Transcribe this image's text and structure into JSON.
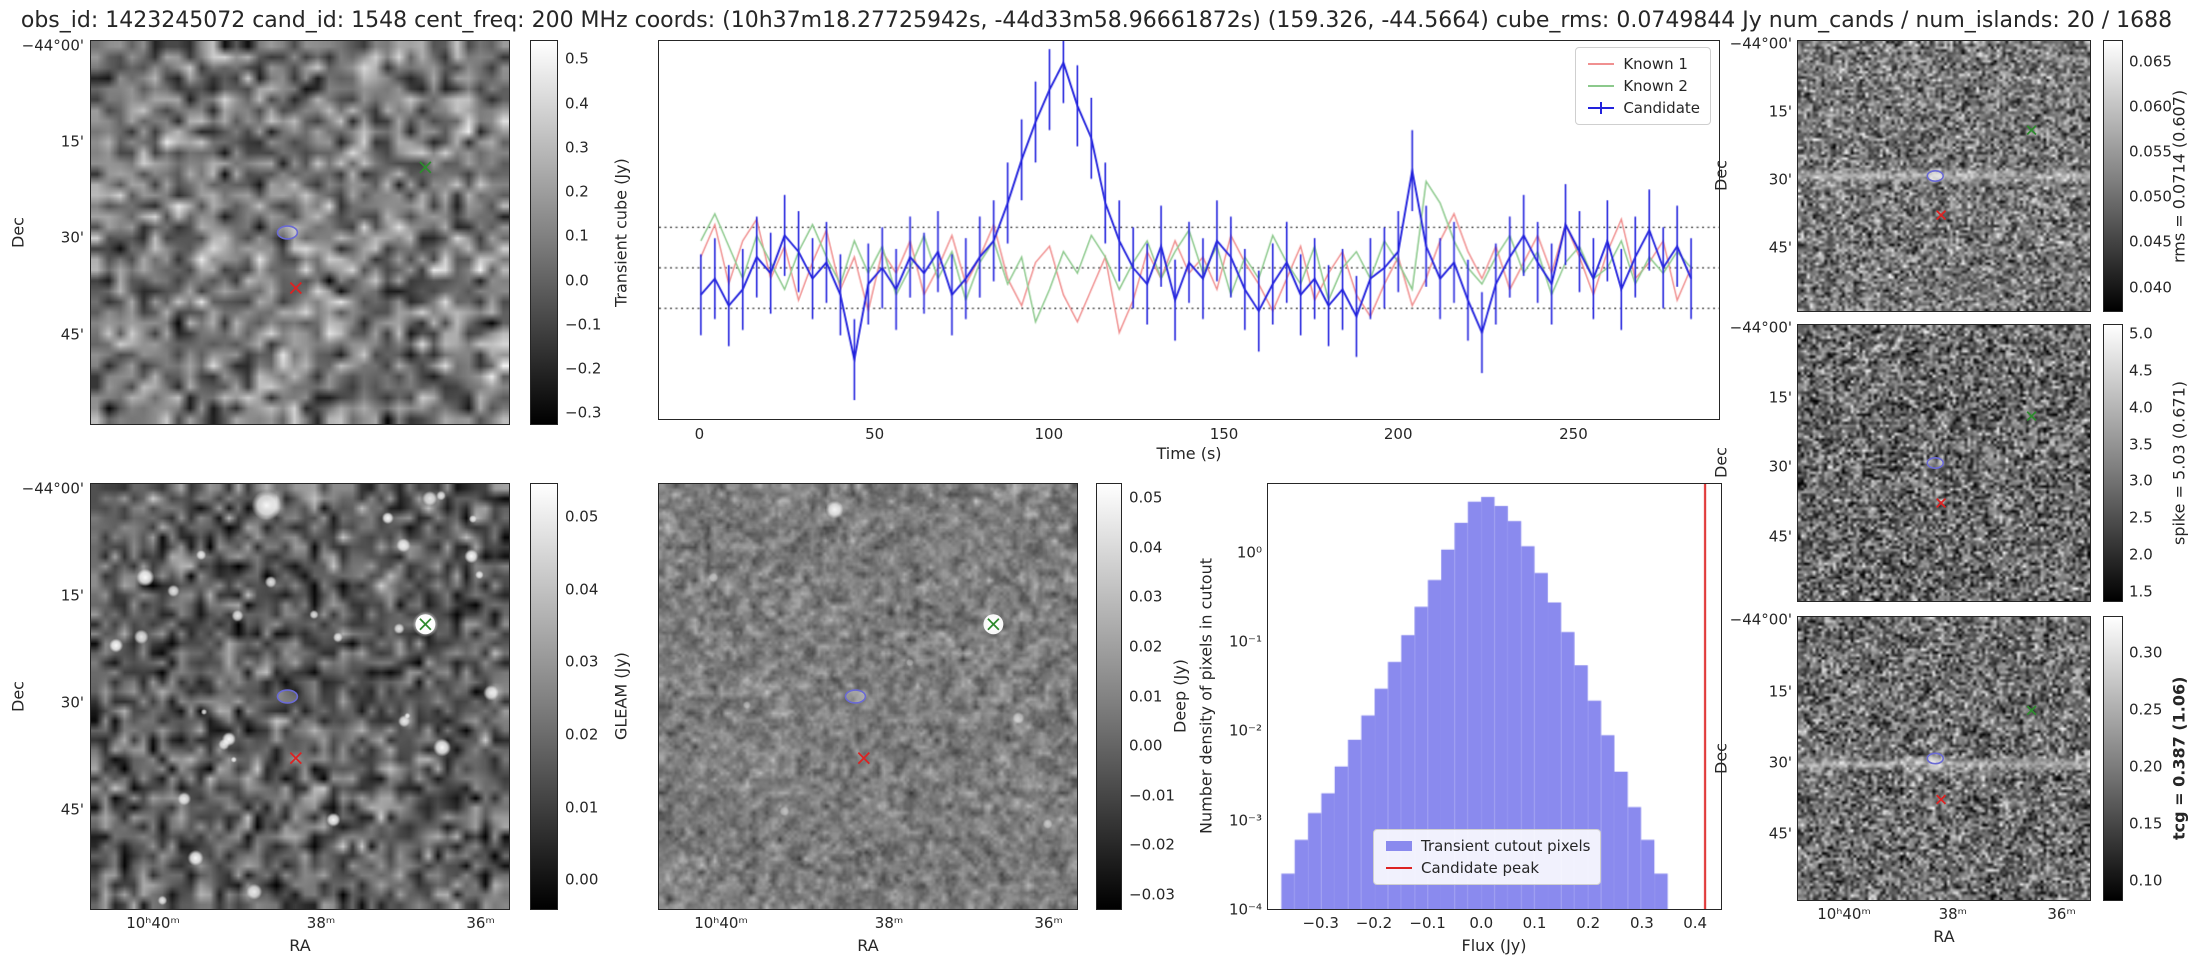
{
  "title": "obs_id: 1423245072 cand_id: 1548 cent_freq: 200 MHz coords: (10h37m18.27725942s, -44d33m58.96661872s) (159.326, -44.5664) cube_rms: 0.0749844 Jy num_cands / num_islands: 20 / 1688",
  "axes": {
    "dec_label": "Dec",
    "ra_label": "RA",
    "dec_ticks": [
      "−44°00'",
      "15'",
      "30'",
      "45'"
    ],
    "ra_ticks": [
      "10ʰ40ᵐ",
      "38ᵐ",
      "36ᵐ"
    ]
  },
  "colorbars": {
    "transient_cube": {
      "label": "Transient cube (Jy)",
      "ticks": [
        "0.5",
        "0.4",
        "0.3",
        "0.2",
        "0.1",
        "0.0",
        "−0.1",
        "−0.2",
        "−0.3"
      ]
    },
    "gleam": {
      "label": "GLEAM (Jy)",
      "ticks": [
        "0.05",
        "0.04",
        "0.03",
        "0.02",
        "0.01",
        "0.00"
      ]
    },
    "deep": {
      "label": "Deep (Jy)",
      "ticks": [
        "0.05",
        "0.04",
        "0.03",
        "0.02",
        "0.01",
        "0.00",
        "−0.01",
        "−0.02",
        "−0.03"
      ]
    },
    "rms": {
      "label": "rms = 0.0714 (0.607)",
      "ticks": [
        "0.065",
        "0.060",
        "0.055",
        "0.050",
        "0.045",
        "0.040"
      ]
    },
    "spike": {
      "label": "spike = 5.03 (0.671)",
      "ticks": [
        "5.0",
        "4.5",
        "4.0",
        "3.5",
        "3.0",
        "2.5",
        "2.0",
        "1.5"
      ]
    },
    "tcg": {
      "label": "tcg = 0.387 (1.06)",
      "ticks": [
        "0.30",
        "0.25",
        "0.20",
        "0.15",
        "0.10"
      ]
    }
  },
  "markers": {
    "ellipse": {
      "fx": 0.47,
      "fy": 0.5,
      "color": "#6a6ad4"
    },
    "red_cross": {
      "fx": 0.49,
      "fy": 0.645,
      "color": "#dd2222"
    },
    "green_cross": {
      "fx": 0.8,
      "fy": 0.33,
      "color": "#2e8b2e"
    }
  },
  "chart_data": [
    {
      "type": "line",
      "title": "",
      "xlabel": "Time (s)",
      "ylabel": "",
      "xlim": [
        -12,
        292
      ],
      "ylim": [
        -0.28,
        0.42
      ],
      "xtick_values": [
        0,
        50,
        100,
        150,
        200,
        250
      ],
      "xtick_labels": [
        "0",
        "50",
        "100",
        "150",
        "200",
        "250"
      ],
      "hlines": [
        0.075,
        0.0,
        -0.075
      ],
      "legend_position": "upper right",
      "x": [
        0,
        4,
        8,
        12,
        16,
        20,
        24,
        28,
        32,
        36,
        40,
        44,
        48,
        52,
        56,
        60,
        64,
        68,
        72,
        76,
        80,
        84,
        88,
        92,
        96,
        100,
        104,
        108,
        112,
        116,
        120,
        124,
        128,
        132,
        136,
        140,
        144,
        148,
        152,
        156,
        160,
        164,
        168,
        172,
        176,
        180,
        184,
        188,
        192,
        196,
        200,
        204,
        208,
        212,
        216,
        220,
        224,
        228,
        232,
        236,
        240,
        244,
        248,
        252,
        256,
        260,
        264,
        268,
        272,
        276,
        280,
        284
      ],
      "series": [
        {
          "name": "Known 1",
          "color": "#f09090",
          "values": [
            0.02,
            0.08,
            -0.03,
            0.05,
            0.09,
            -0.02,
            0.04,
            -0.06,
            0.01,
            0.07,
            -0.04,
            0.02,
            -0.08,
            0.03,
            -0.01,
            0.05,
            -0.05,
            0.0,
            0.06,
            -0.03,
            0.02,
            0.08,
            -0.02,
            -0.07,
            0.01,
            0.04,
            -0.05,
            -0.1,
            -0.04,
            0.02,
            -0.12,
            -0.06,
            0.03,
            -0.02,
            0.05,
            -0.01,
            0.02,
            -0.04,
            0.06,
            0.01,
            -0.03,
            -0.08,
            -0.02,
            0.04,
            -0.06,
            -0.01,
            0.03,
            -0.05,
            -0.09,
            -0.03,
            0.02,
            -0.07,
            -0.02,
            0.05,
            0.1,
            0.03,
            -0.02,
            0.04,
            -0.04,
            0.01,
            0.06,
            -0.01,
            0.08,
            0.02,
            -0.05,
            0.03,
            0.09,
            -0.02,
            0.01,
            0.05,
            -0.06,
            0.0
          ]
        },
        {
          "name": "Known 2",
          "color": "#8cc98c",
          "values": [
            0.05,
            0.1,
            0.04,
            -0.02,
            0.06,
            0.01,
            -0.04,
            0.03,
            0.08,
            0.02,
            -0.03,
            0.05,
            -0.01,
            0.04,
            -0.05,
            0.0,
            0.06,
            -0.02,
            0.03,
            -0.06,
            0.01,
            0.05,
            -0.03,
            0.02,
            -0.1,
            -0.04,
            0.03,
            -0.01,
            0.06,
            0.02,
            -0.04,
            0.01,
            0.05,
            -0.02,
            0.03,
            0.07,
            -0.01,
            0.04,
            -0.05,
            0.02,
            -0.02,
            0.06,
            0.01,
            -0.03,
            0.04,
            -0.06,
            0.0,
            0.03,
            -0.02,
            0.05,
            0.01,
            -0.04,
            0.16,
            0.12,
            0.05,
            0.0,
            -0.03,
            0.02,
            0.06,
            -0.01,
            0.03,
            -0.05,
            0.01,
            0.04,
            -0.02,
            0.0,
            0.05,
            -0.03,
            0.02,
            -0.01,
            0.03,
            0.0
          ]
        },
        {
          "name": "Candidate",
          "color": "#2222dd",
          "yerr": 0.075,
          "values": [
            -0.05,
            -0.02,
            -0.07,
            -0.04,
            0.02,
            -0.01,
            0.06,
            0.03,
            -0.02,
            0.01,
            -0.05,
            -0.17,
            -0.03,
            0.0,
            -0.04,
            0.02,
            -0.01,
            0.03,
            -0.05,
            -0.02,
            0.02,
            0.05,
            0.12,
            0.2,
            0.27,
            0.33,
            0.38,
            0.3,
            0.24,
            0.12,
            0.05,
            0.0,
            -0.03,
            0.04,
            -0.06,
            0.01,
            -0.02,
            0.05,
            0.02,
            -0.04,
            -0.08,
            -0.03,
            0.01,
            -0.05,
            -0.02,
            -0.07,
            -0.04,
            -0.09,
            -0.02,
            0.0,
            0.03,
            0.18,
            0.04,
            -0.02,
            0.01,
            -0.06,
            -0.12,
            -0.03,
            0.02,
            0.06,
            0.01,
            -0.03,
            0.08,
            0.03,
            -0.02,
            0.05,
            -0.04,
            0.02,
            0.07,
            0.0,
            0.04,
            -0.02
          ]
        }
      ]
    },
    {
      "type": "bar",
      "title": "",
      "xlabel": "Flux (Jy)",
      "ylabel": "Number density of pixels in cutout",
      "yscale": "log",
      "xlim": [
        -0.4,
        0.45
      ],
      "ylim": [
        0.0001,
        6
      ],
      "xtick_values": [
        -0.3,
        -0.2,
        -0.1,
        0.0,
        0.1,
        0.2,
        0.3,
        0.4
      ],
      "xtick_labels": [
        "−0.3",
        "−0.2",
        "−0.1",
        "0.0",
        "0.1",
        "0.2",
        "0.3",
        "0.4"
      ],
      "ytick_labels": [
        "10⁰",
        "10⁻¹",
        "10⁻²",
        "10⁻³",
        "10⁻⁴"
      ],
      "bar_color": "#8a8aee",
      "bin_width": 0.025,
      "bin_centers": [
        -0.3625,
        -0.3375,
        -0.3125,
        -0.2875,
        -0.2625,
        -0.2375,
        -0.2125,
        -0.1875,
        -0.1625,
        -0.1375,
        -0.1125,
        -0.0875,
        -0.0625,
        -0.0375,
        -0.0125,
        0.0125,
        0.0375,
        0.0625,
        0.0875,
        0.1125,
        0.1375,
        0.1625,
        0.1875,
        0.2125,
        0.2375,
        0.2625,
        0.2875,
        0.3125,
        0.3375
      ],
      "densities": [
        0.00025,
        0.0006,
        0.0012,
        0.002,
        0.004,
        0.008,
        0.015,
        0.03,
        0.06,
        0.12,
        0.25,
        0.5,
        1.1,
        2.2,
        3.8,
        4.3,
        3.4,
        2.3,
        1.2,
        0.6,
        0.28,
        0.13,
        0.055,
        0.022,
        0.009,
        0.0035,
        0.0014,
        0.0006,
        0.00025
      ],
      "vline_x": 0.42,
      "vline_color": "#dd2222",
      "legend": [
        "Transient cutout pixels",
        "Candidate peak"
      ]
    }
  ]
}
